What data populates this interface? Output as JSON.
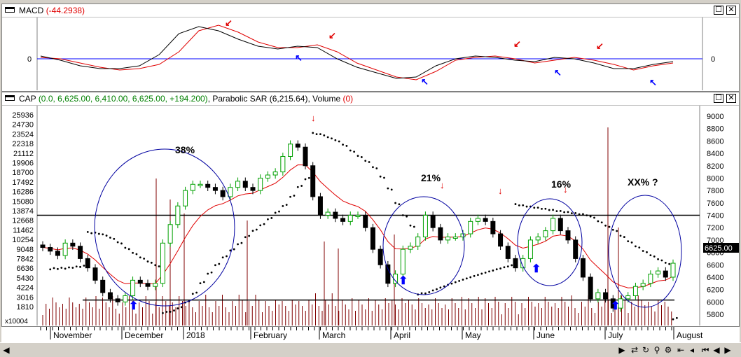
{
  "macd_panel": {
    "title": "MACD",
    "value": "(-44.2938)",
    "zero_label": "0",
    "button_max": "☐",
    "button_close": "✕"
  },
  "cap_panel": {
    "symbol": "CAP",
    "ohlc": "(0.0, 6,625.00, 6,410.00, 6,625.00, +194.200)",
    "sar_label": "Parabolic SAR",
    "sar_value": "(6,215.64)",
    "volume_label": "Volume",
    "volume_value": "(0)",
    "last_price": "6625.00",
    "volume_multiplier": "x10004",
    "button_max": "☐",
    "button_close": "✕"
  },
  "time_axis": [
    "November",
    "December",
    "2018",
    "February",
    "March",
    "April",
    "May",
    "June",
    "July",
    "August"
  ],
  "annotations": {
    "a38": "38%",
    "a21": "21%",
    "a16": "16%",
    "axx": "XX% ?"
  },
  "colors": {
    "up_candle": "#00a000",
    "down_candle": "#000000",
    "ema": "#e00000",
    "sar": "#000000",
    "volume": "#800000",
    "circle": "#0000a0",
    "buy_arrow": "#0000ff",
    "sell_arrow": "#e00000"
  },
  "chart_data": [
    {
      "type": "line",
      "title": "MACD",
      "current_value": -44.2938,
      "zero_line": 0,
      "series": [
        {
          "values": [
            2,
            0,
            -6,
            -12,
            -16,
            -14,
            -8,
            10,
            40,
            48,
            38,
            24,
            16,
            16,
            20,
            10,
            -6,
            -16,
            -26,
            -30,
            -18,
            -2,
            2,
            4,
            0,
            -6,
            -2,
            2,
            -2,
            -8,
            -16,
            -10,
            -6
          ]
        },
        {
          "values": [
            4,
            -2,
            -10,
            -14,
            -14,
            -10,
            6,
            36,
            46,
            40,
            28,
            18,
            14,
            18,
            16,
            0,
            -12,
            -20,
            -28,
            -26,
            -10,
            0,
            4,
            2,
            -2,
            -4,
            2,
            0,
            -6,
            -14,
            -14,
            -8,
            -4
          ]
        }
      ]
    },
    {
      "type": "bar",
      "title": "CAP",
      "y_right_range": [
        5600,
        9100
      ],
      "y_right_ticks": [
        5800,
        6000,
        6200,
        6400,
        6600,
        6800,
        7000,
        7200,
        7400,
        7600,
        7800,
        8000,
        8200,
        8400,
        8600,
        8800,
        9000
      ],
      "y_left_ticks": [
        "25936",
        "24730",
        "23524",
        "22318",
        "21112",
        "19906",
        "18700",
        "17492",
        "16286",
        "15080",
        "13874",
        "12668",
        "11462",
        "10254",
        "9048",
        "7842",
        "6636",
        "5430",
        "4224",
        "3016",
        "1810"
      ],
      "last_close": 6625.0,
      "parabolic_sar": 6215.64,
      "horizontal_lines": [
        7400,
        6030
      ],
      "close": [
        6880,
        6820,
        6750,
        6950,
        6900,
        6700,
        6550,
        6350,
        6150,
        6050,
        6000,
        6100,
        6350,
        6300,
        6250,
        6300,
        6950,
        7250,
        7550,
        7800,
        7900,
        7900,
        7850,
        7800,
        7700,
        7850,
        7950,
        7850,
        7800,
        8000,
        8050,
        8100,
        8350,
        8550,
        8500,
        8200,
        7700,
        7400,
        7450,
        7350,
        7300,
        7400,
        7400,
        7200,
        6850,
        6600,
        6300,
        6450,
        6850,
        6900,
        7050,
        7400,
        7200,
        7000,
        7050,
        7050,
        7100,
        7300,
        7350,
        7300,
        7100,
        6900,
        6700,
        6550,
        6700,
        7000,
        7050,
        7150,
        7350,
        7150,
        7000,
        6700,
        6400,
        6050,
        6150,
        6050,
        5900,
        6050,
        6100,
        6250,
        6300,
        6450,
        6500,
        6400,
        6625
      ],
      "annotations": [
        "38%",
        "21%",
        "16%",
        "XX% ?"
      ]
    }
  ]
}
